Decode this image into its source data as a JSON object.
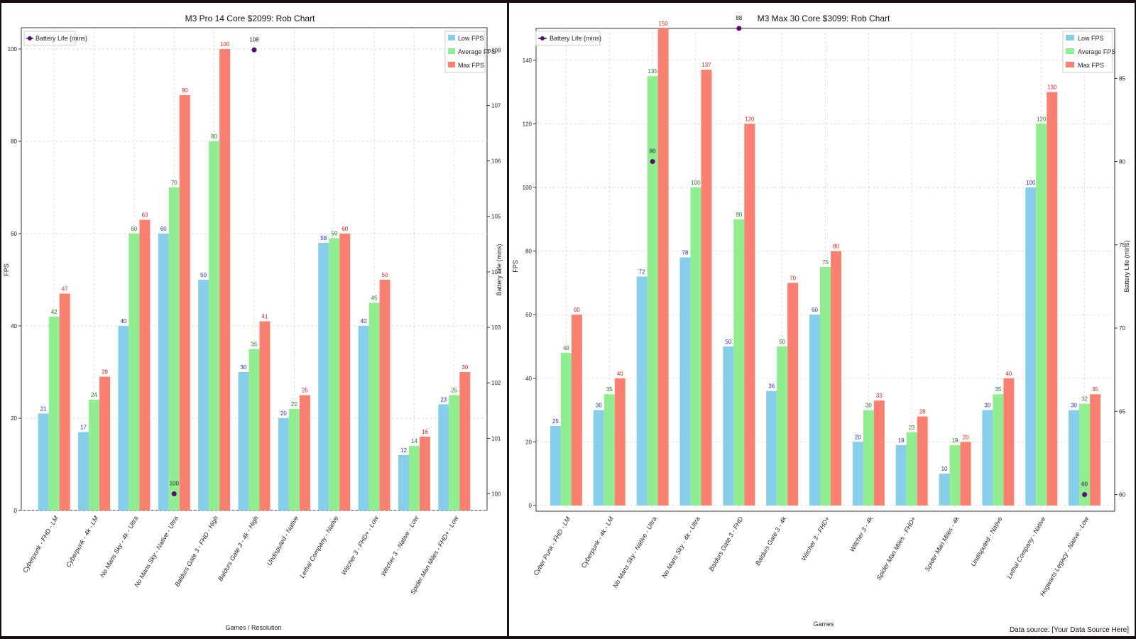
{
  "colors": {
    "low": "#87ceeb",
    "avg": "#90ee90",
    "max": "#fa8072",
    "low_text": "#2a2ab8",
    "avg_text": "#2a7a2a",
    "max_text": "#d22",
    "battery": "#5a0a70"
  },
  "legend": {
    "battery": "Battery Life (mins)",
    "low": "Low FPS",
    "avg": "Average FPS",
    "max": "Max FPS"
  },
  "source_note": "Data source: [Your Data Source Here]",
  "chart_data": [
    {
      "type": "bar",
      "title": "M3 Pro 14 Core $2099: Rob Chart",
      "xlabel": "Games / Resolution",
      "ylabel": "FPS",
      "y2label": "Battery Life (mins)",
      "ylim": [
        0,
        100
      ],
      "yticks": [
        0,
        20,
        40,
        60,
        80,
        100
      ],
      "y2lim": [
        99.7,
        108.4
      ],
      "y2ticks": [
        100,
        101,
        102,
        103,
        104,
        105,
        106,
        107,
        108
      ],
      "categories": [
        "Cyberpunk - FHD - LM",
        "Cyberpunk - 4k - LM",
        "No Mans Sky - 4k - Ultra",
        "No Mans Sky - Native - Ultra",
        "Baldurs Gate 3 - FHD - High",
        "Baldurs Gate 3 - 4k - High",
        "Undisputed - Native",
        "Lethal Company - Native",
        "Witcher 3 - FHD+ - Low",
        "Witcher 3 - Native - Low",
        "Spider Man Miles - FHD+ - Low"
      ],
      "series": [
        {
          "name": "Low FPS",
          "values": [
            21,
            17,
            40,
            60,
            50,
            30,
            20,
            58,
            40,
            12,
            23
          ]
        },
        {
          "name": "Average FPS",
          "values": [
            42,
            24,
            60,
            70,
            80,
            35,
            22,
            59,
            45,
            14,
            25
          ]
        },
        {
          "name": "Max FPS",
          "values": [
            47,
            29,
            63,
            90,
            100,
            41,
            25,
            60,
            50,
            16,
            30
          ]
        }
      ],
      "battery": [
        {
          "index": 3,
          "value": 100
        },
        {
          "index": 5,
          "value": 108
        }
      ]
    },
    {
      "type": "bar",
      "title": "M3 Max 30 Core $3099: Rob Chart",
      "xlabel": "Games",
      "ylabel": "FPS",
      "y2label": "Battery Life (mins)",
      "ylim": [
        0,
        150
      ],
      "yticks": [
        0,
        20,
        40,
        60,
        80,
        100,
        120,
        140
      ],
      "y2lim": [
        59,
        88
      ],
      "y2ticks": [
        60,
        65,
        70,
        75,
        80,
        85
      ],
      "categories": [
        "Cyber Punk - FHD - LM",
        "Cyberpunk - 4k - LM",
        "No Mans Sky - Native - Ultra",
        "No Mans Sky - 4k - Ultra",
        "Baldurs Gate 3 - FHD",
        "Baldurs Gate 3 - 4k",
        "Witcher 3 - FHD+",
        "Witcher 3 - 4k",
        "Spider Man Miles - FHD+",
        "Spider Man Miles - 4k",
        "Undisputed - Native",
        "Lethal Company - Native",
        "Hogwarts Legacy - Native - Low"
      ],
      "series": [
        {
          "name": "Low FPS",
          "values": [
            25,
            30,
            72,
            78,
            50,
            36,
            60,
            20,
            19,
            10,
            30,
            100,
            30
          ]
        },
        {
          "name": "Average FPS",
          "values": [
            48,
            35,
            135,
            100,
            90,
            50,
            75,
            30,
            23,
            19,
            35,
            120,
            32
          ]
        },
        {
          "name": "Max FPS",
          "values": [
            60,
            40,
            150,
            137,
            120,
            70,
            80,
            33,
            28,
            20,
            40,
            130,
            35
          ]
        }
      ],
      "battery": [
        {
          "index": 2,
          "value": 80
        },
        {
          "index": 4,
          "value": 88
        },
        {
          "index": 12,
          "value": 60
        }
      ]
    }
  ]
}
